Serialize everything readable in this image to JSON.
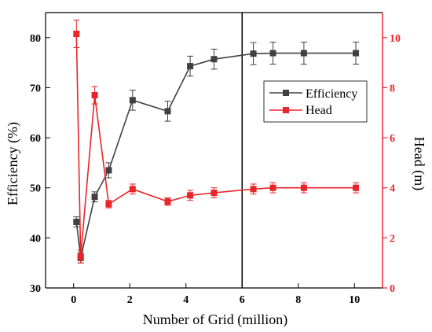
{
  "chart_data": {
    "type": "line",
    "xlabel": "Number of Grid (million)",
    "ylabel_left": "Efficiency (%)",
    "ylabel_right": "Head (m)",
    "xlim": [
      -1,
      11
    ],
    "ylim_left": [
      30,
      85
    ],
    "ylim_right": [
      0,
      11
    ],
    "xticks": [
      0,
      2,
      4,
      6,
      8,
      10
    ],
    "yticks_left": [
      30,
      40,
      50,
      60,
      70,
      80
    ],
    "yticks_right": [
      0,
      2,
      4,
      6,
      8,
      10
    ],
    "vline_x": 6,
    "legend_position": "top-right",
    "series": [
      {
        "name": "Efficiency",
        "axis": "left",
        "color": "#404040",
        "x": [
          0.1,
          0.25,
          0.75,
          1.25,
          2.1,
          3.35,
          4.15,
          5.0,
          6.4,
          7.1,
          8.2,
          10.05
        ],
        "y": [
          43.2,
          36.0,
          48.2,
          53.5,
          67.5,
          65.3,
          74.3,
          75.7,
          76.8,
          76.9,
          76.9,
          76.9
        ],
        "err": [
          1.0,
          1.0,
          1.0,
          1.5,
          2.0,
          2.0,
          2.0,
          2.0,
          2.2,
          2.2,
          2.2,
          2.2
        ]
      },
      {
        "name": "Head",
        "axis": "right",
        "color": "#e8262a",
        "x": [
          0.1,
          0.25,
          0.75,
          1.25,
          2.1,
          3.35,
          4.15,
          5.0,
          6.4,
          7.1,
          8.2,
          10.05
        ],
        "y": [
          10.15,
          1.25,
          7.7,
          3.35,
          3.95,
          3.45,
          3.7,
          3.8,
          3.95,
          4.0,
          4.0,
          4.0
        ],
        "err": [
          0.55,
          0.25,
          0.35,
          0.15,
          0.2,
          0.15,
          0.2,
          0.2,
          0.2,
          0.2,
          0.2,
          0.2
        ]
      }
    ]
  }
}
